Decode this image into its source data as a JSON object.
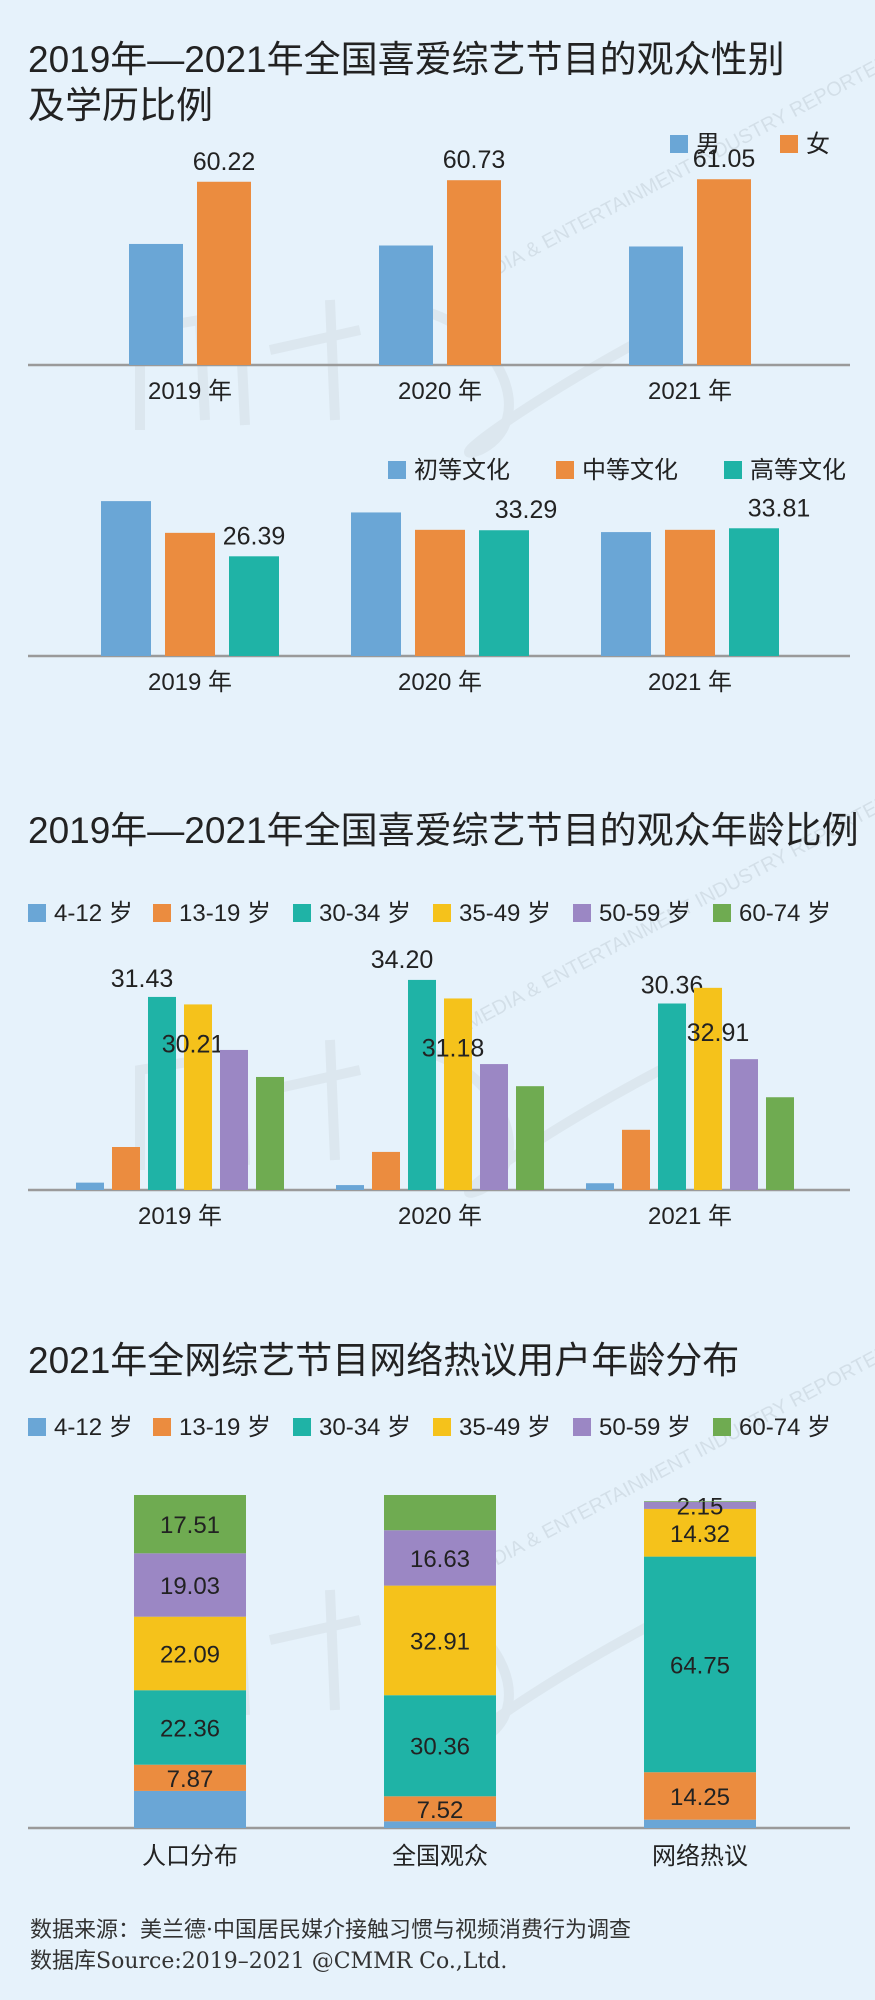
{
  "colors": {
    "blue": "#6aa6d6",
    "orange": "#eb8c3f",
    "teal": "#1fb3a6",
    "yellow": "#f5c21b",
    "purple": "#9b87c4",
    "green": "#6fab51",
    "axis": "#9a9a9a"
  },
  "watermark": {
    "brand": "MEDIA & ENTERTAINMENT INDUSTRY REPORTER"
  },
  "gender": {
    "title_line1": "2019年—2021年全国喜爱综艺节目的观众性别",
    "title_line2": "及学历比例"
  },
  "age": {
    "title": "2019年—2021年全国喜爱综艺节目的观众年龄比例"
  },
  "online": {
    "title": "2021年全网综艺节目网络热议用户年龄分布"
  },
  "source": {
    "line1": "数据来源：美兰德·中国居民媒介接触习惯与视频消费行为调查",
    "line2": "数据库Source:2019–2021 @CMMR Co.,Ltd."
  },
  "chart_data": [
    {
      "type": "bar",
      "categories": [
        "2019 年",
        "2020 年",
        "2021 年"
      ],
      "series": [
        {
          "name": "男",
          "values": [
            39.78,
            39.27,
            38.95
          ]
        },
        {
          "name": "女",
          "values": [
            60.22,
            60.73,
            61.05
          ]
        }
      ],
      "data_labels": [
        [
          null,
          null,
          null
        ],
        [
          "60.22",
          "60.73",
          "61.05"
        ]
      ],
      "ylim": [
        0,
        70
      ]
    },
    {
      "type": "bar",
      "categories": [
        "2019 年",
        "2020 年",
        "2021 年"
      ],
      "series": [
        {
          "name": "初等文化",
          "values": [
            41,
            38,
            32.8
          ]
        },
        {
          "name": "中等文化",
          "values": [
            32.6,
            33.4,
            33.4
          ]
        },
        {
          "name": "高等文化",
          "values": [
            26.39,
            33.29,
            33.81
          ]
        }
      ],
      "data_labels": [
        [
          null,
          null,
          null
        ],
        [
          null,
          null,
          null
        ],
        [
          "26.39",
          "33.29",
          "33.81"
        ]
      ],
      "ylim": [
        0,
        45
      ]
    },
    {
      "type": "bar",
      "categories": [
        "2019 年",
        "2020 年",
        "2021 年"
      ],
      "series": [
        {
          "name": "4-12 岁",
          "values": [
            1.2,
            0.8,
            1.1
          ]
        },
        {
          "name": "13-19 岁",
          "values": [
            7,
            6.2,
            9.8
          ]
        },
        {
          "name": "30-34 岁",
          "values": [
            31.43,
            34.2,
            30.36
          ]
        },
        {
          "name": "35-49 岁",
          "values": [
            30.21,
            31.18,
            32.91
          ]
        },
        {
          "name": "50-59 岁",
          "values": [
            22.8,
            20.5,
            21.3
          ]
        },
        {
          "name": "60-74 岁",
          "values": [
            18.4,
            16.9,
            15.1
          ]
        }
      ],
      "data_labels": [
        [
          null,
          null,
          null
        ],
        [
          null,
          null,
          null
        ],
        [
          "31.43",
          "34.20",
          "30.36"
        ],
        [
          "30.21",
          "31.18",
          "32.91"
        ],
        [
          null,
          null,
          null
        ],
        [
          null,
          null,
          null
        ]
      ],
      "ylim": [
        0,
        35
      ]
    },
    {
      "type": "bar",
      "stacked": true,
      "categories": [
        "人口分布",
        "全国观众",
        "网络热议"
      ],
      "series": [
        {
          "name": "4-12 岁",
          "values": [
            11.14,
            2.0,
            2.5
          ]
        },
        {
          "name": "13-19 岁",
          "values": [
            7.87,
            7.52,
            14.25
          ]
        },
        {
          "name": "30-34 岁",
          "values": [
            22.36,
            30.36,
            64.75
          ]
        },
        {
          "name": "35-49 岁",
          "values": [
            22.09,
            32.91,
            14.32
          ]
        },
        {
          "name": "50-59 岁",
          "values": [
            19.03,
            16.63,
            2.15
          ]
        },
        {
          "name": "60-74 岁",
          "values": [
            17.51,
            10.58,
            0.2
          ]
        }
      ],
      "data_labels": [
        [
          null,
          null,
          null
        ],
        [
          "7.87",
          "7.52",
          "14.25"
        ],
        [
          "22.36",
          "30.36",
          "64.75"
        ],
        [
          "22.09",
          "32.91",
          "14.32"
        ],
        [
          "19.03",
          "16.63",
          "2.15"
        ],
        [
          "17.51",
          null,
          null
        ]
      ],
      "ylim": [
        0,
        100
      ]
    }
  ]
}
